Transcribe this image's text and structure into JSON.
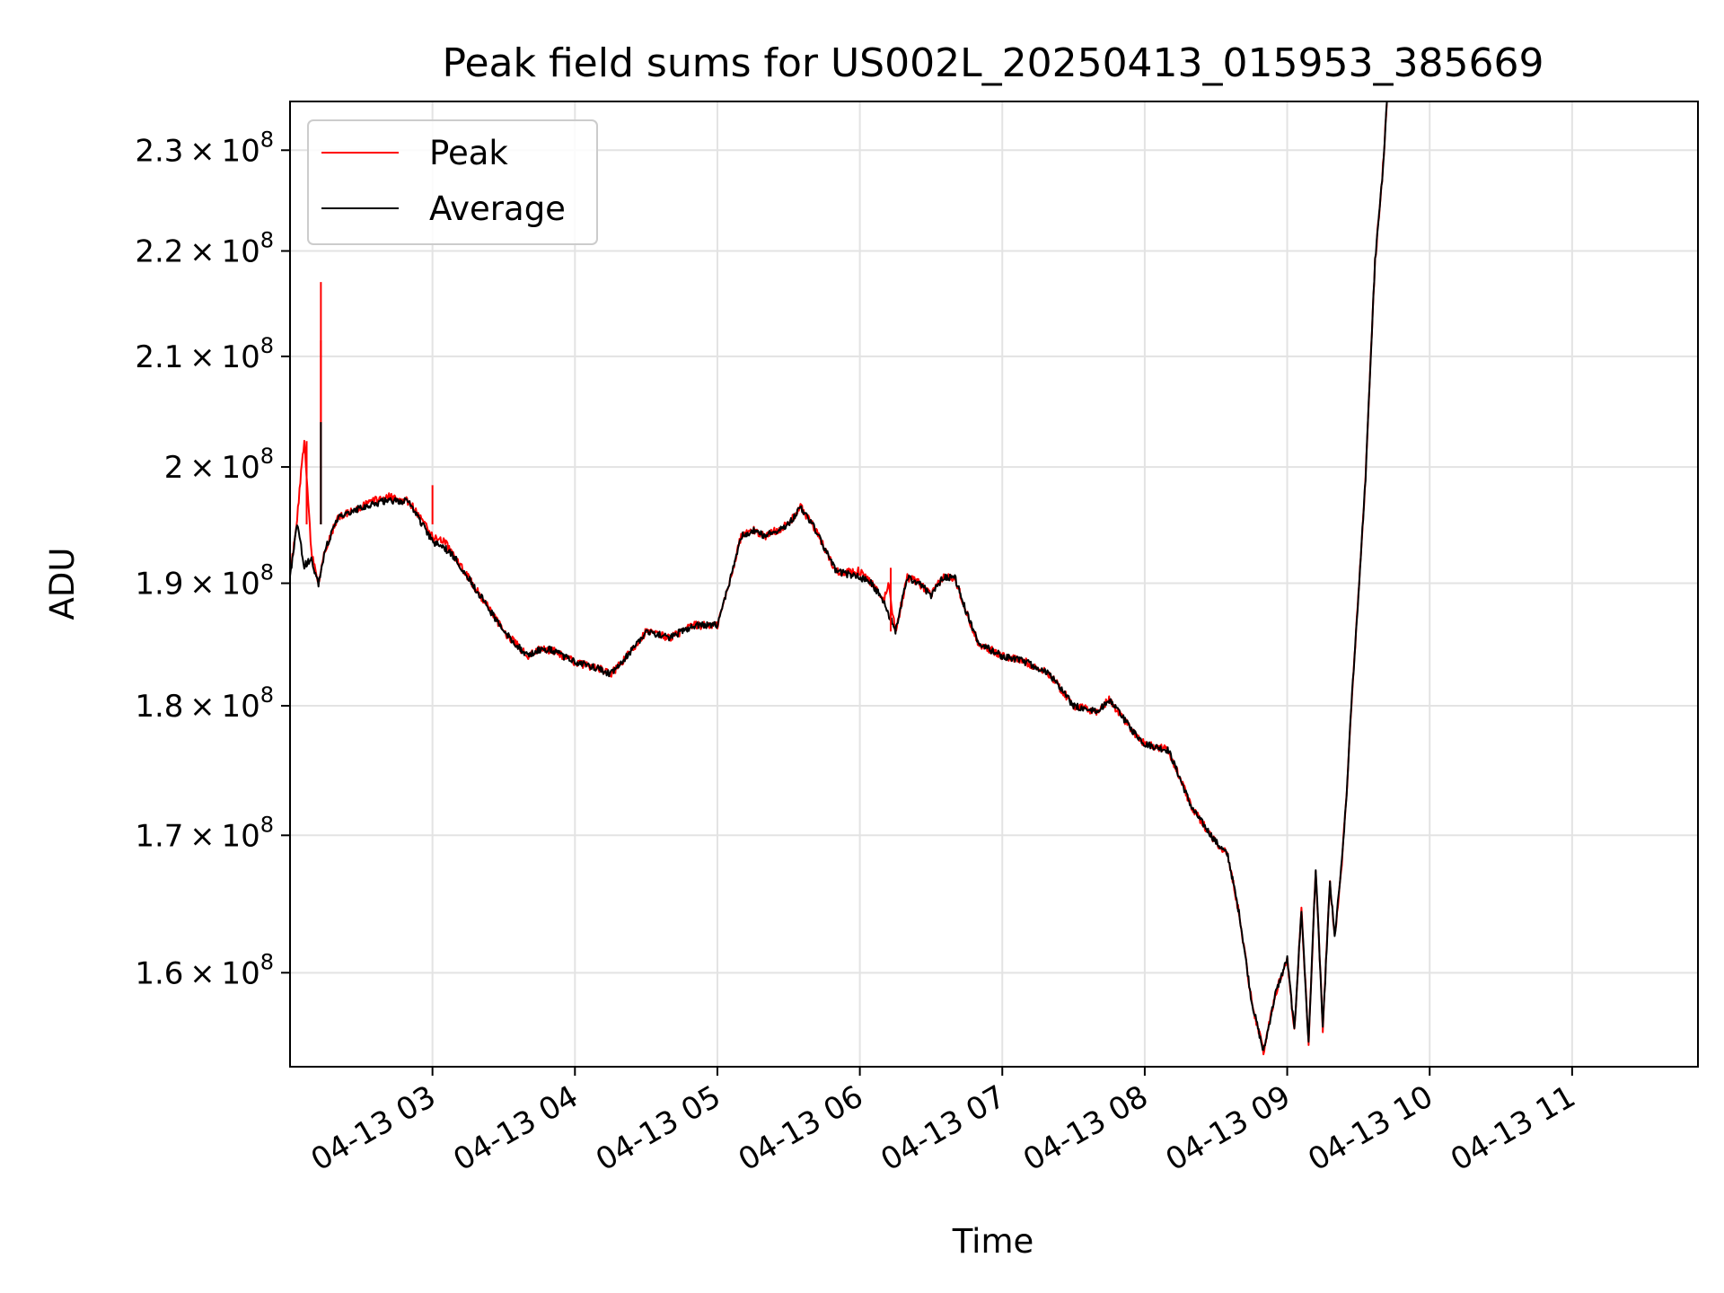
{
  "chart_data": {
    "type": "line",
    "title": "Peak field sums for US002L_20250413_015953_385669",
    "xlabel": "Time",
    "ylabel": "ADU",
    "yscale": "log",
    "xlim": [
      "04-13 02:00",
      "04-13 11:53"
    ],
    "ylim": [
      153500000,
      235000000
    ],
    "grid": true,
    "legend": "upper-left",
    "x_ticks": [
      "04-13 03",
      "04-13 04",
      "04-13 05",
      "04-13 06",
      "04-13 07",
      "04-13 08",
      "04-13 09",
      "04-13 10",
      "04-13 11"
    ],
    "y_ticks": [
      {
        "value": 160000000,
        "mantissa": "1.6",
        "exponent": "8"
      },
      {
        "value": 170000000,
        "mantissa": "1.7",
        "exponent": "8"
      },
      {
        "value": 180000000,
        "mantissa": "1.8",
        "exponent": "8"
      },
      {
        "value": 190000000,
        "mantissa": "1.9",
        "exponent": "8"
      },
      {
        "value": 200000000,
        "mantissa": "2",
        "exponent": "8"
      },
      {
        "value": 210000000,
        "mantissa": "2.1",
        "exponent": "8"
      },
      {
        "value": 220000000,
        "mantissa": "2.2",
        "exponent": "8"
      },
      {
        "value": 230000000,
        "mantissa": "2.3",
        "exponent": "8"
      }
    ],
    "times": [
      "04-13 02:00",
      "04-13 02:03",
      "04-13 02:06",
      "04-13 02:09",
      "04-13 02:12",
      "04-13 02:15",
      "04-13 02:20",
      "04-13 02:30",
      "04-13 02:40",
      "04-13 02:50",
      "04-13 03:00",
      "04-13 03:05",
      "04-13 03:10",
      "04-13 03:15",
      "04-13 03:20",
      "04-13 03:25",
      "04-13 03:30",
      "04-13 03:40",
      "04-13 03:45",
      "04-13 03:50",
      "04-13 04:00",
      "04-13 04:10",
      "04-13 04:15",
      "04-13 04:20",
      "04-13 04:30",
      "04-13 04:40",
      "04-13 04:50",
      "04-13 05:00",
      "04-13 05:05",
      "04-13 05:10",
      "04-13 05:15",
      "04-13 05:20",
      "04-13 05:30",
      "04-13 05:35",
      "04-13 05:40",
      "04-13 05:45",
      "04-13 05:50",
      "04-13 06:00",
      "04-13 06:05",
      "04-13 06:10",
      "04-13 06:12",
      "04-13 06:15",
      "04-13 06:20",
      "04-13 06:25",
      "04-13 06:30",
      "04-13 06:35",
      "04-13 06:40",
      "04-13 06:45",
      "04-13 06:50",
      "04-13 07:00",
      "04-13 07:10",
      "04-13 07:20",
      "04-13 07:30",
      "04-13 07:40",
      "04-13 07:45",
      "04-13 07:55",
      "04-13 08:00",
      "04-13 08:10",
      "04-13 08:20",
      "04-13 08:30",
      "04-13 08:35",
      "04-13 08:40",
      "04-13 08:45",
      "04-13 08:50",
      "04-13 08:55",
      "04-13 09:00",
      "04-13 09:03",
      "04-13 09:06",
      "04-13 09:09",
      "04-13 09:12",
      "04-13 09:15",
      "04-13 09:18",
      "04-13 09:20",
      "04-13 09:23",
      "04-13 09:25",
      "04-13 09:27",
      "04-13 09:30",
      "04-13 09:33",
      "04-13 09:35",
      "04-13 09:37",
      "04-13 09:40",
      "04-13 09:42",
      "04-13 09:45",
      "04-13 09:48",
      "04-13 09:50",
      "04-13 09:52",
      "04-13 09:53"
    ],
    "series": [
      {
        "name": "Peak",
        "color": "#ff0000",
        "values": [
          190500000,
          195500000,
          202500000,
          192500000,
          190000000,
          193000000,
          195500000,
          196500000,
          197500000,
          197000000,
          194000000,
          193500000,
          192000000,
          190500000,
          189000000,
          187500000,
          186000000,
          184000000,
          184500000,
          184500000,
          183500000,
          183000000,
          182500000,
          183500000,
          186000000,
          185500000,
          186500000,
          186500000,
          190000000,
          194000000,
          194500000,
          194000000,
          195000000,
          196500000,
          195000000,
          193000000,
          191000000,
          191000000,
          190000000,
          188500000,
          190000000,
          186000000,
          190500000,
          190000000,
          189000000,
          190500000,
          190500000,
          187500000,
          185000000,
          184000000,
          183500000,
          182500000,
          180000000,
          179500000,
          180500000,
          178000000,
          177000000,
          176500000,
          172000000,
          169500000,
          168500000,
          164000000,
          158000000,
          154500000,
          158500000,
          161000000,
          156000000,
          164500000,
          155000000,
          167500000,
          156000000,
          166500000,
          162500000,
          168000000,
          173000000,
          180000000,
          189000000,
          199000000,
          209000000,
          219000000,
          227000000,
          235000000,
          235000000,
          235000000,
          235000000,
          235000000,
          235000000
        ]
      },
      {
        "name": "Average",
        "color": "#000000",
        "values": [
          190500000,
          195000000,
          191500000,
          192000000,
          190000000,
          193000000,
          195500000,
          196500000,
          197000000,
          197000000,
          193500000,
          193000000,
          192000000,
          190500000,
          189000000,
          187500000,
          186000000,
          184000000,
          184500000,
          184500000,
          183500000,
          183000000,
          182500000,
          183500000,
          186000000,
          185500000,
          186500000,
          186500000,
          190000000,
          194000000,
          194500000,
          194000000,
          195000000,
          196500000,
          195000000,
          193000000,
          191000000,
          190500000,
          190000000,
          188500000,
          187500000,
          186000000,
          190500000,
          190000000,
          189000000,
          190500000,
          190500000,
          187500000,
          185000000,
          184000000,
          183500000,
          182500000,
          180000000,
          179500000,
          180500000,
          178000000,
          177000000,
          176500000,
          172000000,
          169500000,
          168500000,
          164000000,
          158000000,
          154500000,
          158500000,
          161000000,
          156000000,
          164500000,
          155000000,
          167500000,
          156000000,
          166500000,
          162500000,
          168000000,
          173000000,
          180000000,
          189000000,
          199000000,
          209000000,
          219000000,
          227000000,
          235000000,
          235000000,
          235000000,
          235000000,
          235000000,
          235000000
        ]
      }
    ],
    "peak_spikes": [
      {
        "time": "04-13 02:07",
        "value": 202300000
      },
      {
        "time": "04-13 02:13",
        "value": 217000000
      },
      {
        "time": "04-13 02:13",
        "value": 211500000
      },
      {
        "time": "04-13 03:00",
        "value": 198400000
      },
      {
        "time": "04-13 06:13",
        "value": 191300000
      }
    ],
    "average_spikes": [
      {
        "time": "04-13 02:13",
        "value": 204000000
      }
    ]
  }
}
